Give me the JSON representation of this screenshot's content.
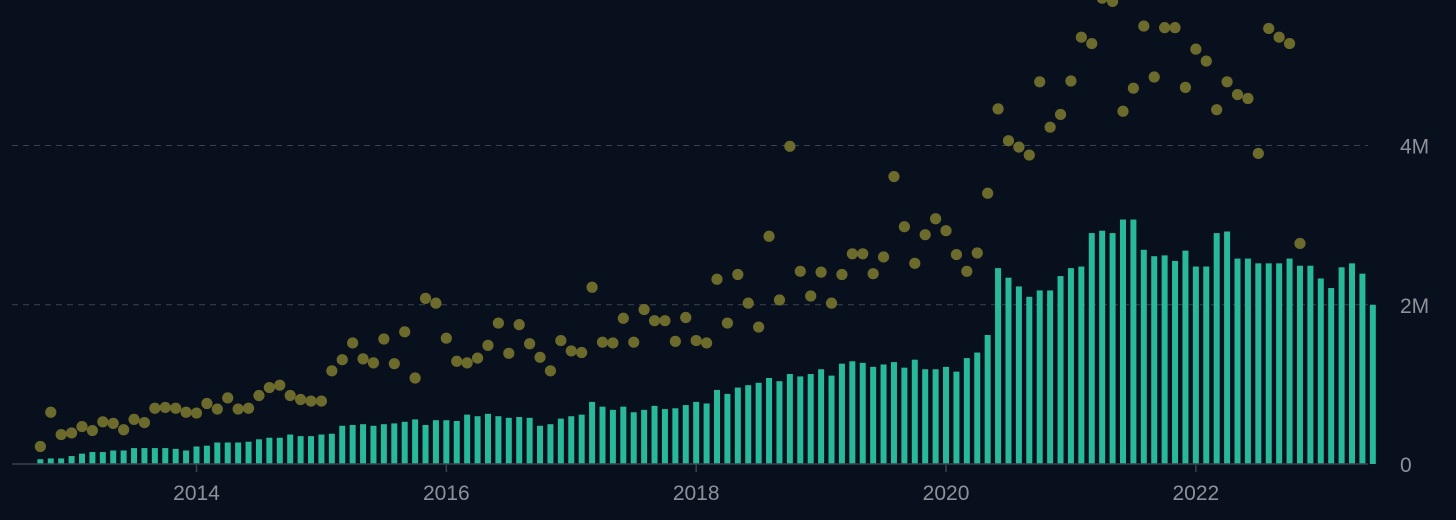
{
  "colors": {
    "background": "#08101e",
    "bars": "#27b99a",
    "points": "#6d6b2c",
    "grid": "#3a4250",
    "tick_text": "#8d929a"
  },
  "chart_data": {
    "type": "bar",
    "title": "",
    "xlabel": "",
    "ylabel": "",
    "x_range": [
      "2012-09",
      "2023-06"
    ],
    "ylim": [
      0,
      5800000
    ],
    "grid": "horizontal dashed",
    "y_axis_side": "right",
    "x_ticks": [
      {
        "date": "2014-01",
        "label": "2014"
      },
      {
        "date": "2016-01",
        "label": "2016"
      },
      {
        "date": "2018-01",
        "label": "2018"
      },
      {
        "date": "2020-01",
        "label": "2020"
      },
      {
        "date": "2022-01",
        "label": "2022"
      }
    ],
    "y_ticks": [
      {
        "value": 0,
        "label": "0"
      },
      {
        "value": 2000000,
        "label": "2M"
      },
      {
        "value": 4000000,
        "label": "4M"
      }
    ],
    "series": [
      {
        "kind": "bar",
        "start": "2012-10",
        "frequency": "monthly",
        "values": [
          60000,
          70000,
          70000,
          100000,
          130000,
          150000,
          150000,
          170000,
          170000,
          200000,
          200000,
          200000,
          200000,
          190000,
          170000,
          220000,
          230000,
          270000,
          270000,
          270000,
          280000,
          310000,
          330000,
          330000,
          370000,
          350000,
          350000,
          370000,
          380000,
          480000,
          490000,
          500000,
          480000,
          500000,
          510000,
          530000,
          560000,
          490000,
          550000,
          550000,
          540000,
          620000,
          600000,
          630000,
          600000,
          580000,
          590000,
          580000,
          480000,
          500000,
          570000,
          600000,
          620000,
          780000,
          720000,
          680000,
          720000,
          650000,
          680000,
          730000,
          690000,
          700000,
          740000,
          780000,
          760000,
          930000,
          880000,
          960000,
          990000,
          1020000,
          1080000,
          1040000,
          1130000,
          1100000,
          1130000,
          1190000,
          1110000,
          1260000,
          1290000,
          1270000,
          1220000,
          1250000,
          1280000,
          1210000,
          1310000,
          1190000,
          1190000,
          1220000,
          1160000,
          1330000,
          1400000,
          1620000,
          2460000,
          2340000,
          2230000,
          2100000,
          2180000,
          2180000,
          2360000,
          2460000,
          2480000,
          2900000,
          2930000,
          2900000,
          3070000,
          3070000,
          2690000,
          2610000,
          2620000,
          2550000,
          2680000,
          2480000,
          2480000,
          2900000,
          2920000,
          2580000,
          2580000,
          2520000,
          2520000,
          2520000,
          2580000,
          2490000,
          2490000,
          2330000,
          2210000,
          2470000,
          2520000,
          2390000,
          2000000
        ]
      },
      {
        "kind": "scatter",
        "start": "2012-10",
        "frequency": "monthly",
        "values": [
          220000,
          650000,
          370000,
          390000,
          470000,
          420000,
          530000,
          510000,
          430000,
          560000,
          520000,
          700000,
          710000,
          700000,
          650000,
          640000,
          760000,
          690000,
          830000,
          690000,
          700000,
          860000,
          960000,
          990000,
          860000,
          810000,
          790000,
          790000,
          1170000,
          1310000,
          1520000,
          1320000,
          1270000,
          1570000,
          1260000,
          1660000,
          1080000,
          2080000,
          2020000,
          1580000,
          1290000,
          1270000,
          1330000,
          1490000,
          1770000,
          1390000,
          1750000,
          1510000,
          1340000,
          1170000,
          1550000,
          1420000,
          1400000,
          2220000,
          1530000,
          1520000,
          1830000,
          1530000,
          1940000,
          1800000,
          1800000,
          1540000,
          1840000,
          1550000,
          1520000,
          2320000,
          1770000,
          2380000,
          2020000,
          1720000,
          2860000,
          2060000,
          3990000,
          2420000,
          2110000,
          2410000,
          2020000,
          2380000,
          2640000,
          2640000,
          2390000,
          2600000,
          3610000,
          2980000,
          2520000,
          2880000,
          3080000,
          2930000,
          2630000,
          2420000,
          2650000,
          3400000,
          4460000,
          4060000,
          3980000,
          3880000,
          4800000,
          4230000,
          4390000,
          4810000,
          5360000,
          5280000,
          5850000,
          5810000,
          4430000,
          4720000,
          5500000,
          4860000,
          5480000,
          5480000,
          4730000,
          5210000,
          5060000,
          4450000,
          4800000,
          4640000,
          4590000,
          3900000,
          5470000,
          5360000,
          5280000,
          2770000
        ]
      }
    ]
  }
}
